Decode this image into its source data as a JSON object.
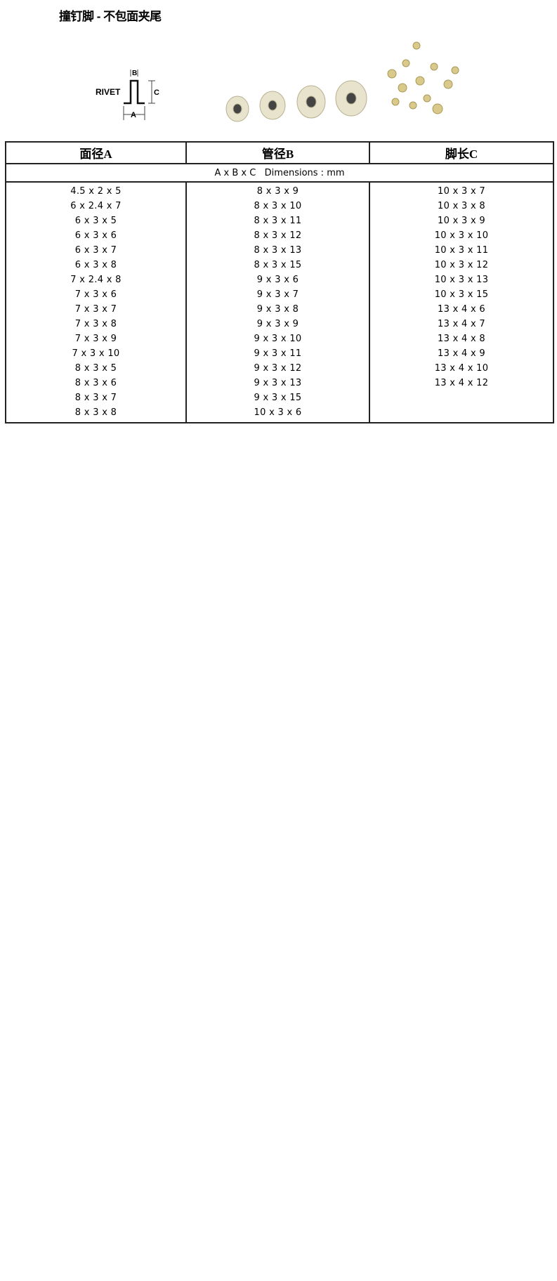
{
  "title": "撞钉脚 - 不包面夹尾",
  "diagram": {
    "label": "RIVET",
    "a": "A",
    "b": "B",
    "c": "C"
  },
  "table": {
    "headers": [
      "面径A",
      "管径B",
      "脚长C"
    ],
    "dimensions_label": "A x B x C   Dimensions : mm",
    "columns": [
      [
        "4.5 x 2 x 5",
        "6 x 2.4 x 7",
        "6 x 3 x 5",
        "6 x 3 x 6",
        "6 x 3 x 7",
        "6 x 3 x 8",
        "7 x 2.4 x 8",
        "7 x 3 x 6",
        "7 x 3 x 7",
        "7 x 3 x 8",
        "7 x 3 x 9",
        "7 x 3 x 10",
        "8 x 3 x 5",
        "8 x 3 x 6",
        "8 x 3 x 7",
        "8 x 3 x 8"
      ],
      [
        "8 x 3 x 9",
        "8 x 3 x 10",
        "8 x 3 x 11",
        "8 x 3 x 12",
        "8 x 3 x 13",
        "8 x 3 x 15",
        "9 x 3 x 6",
        "9 x 3 x 7",
        "9 x 3 x 8",
        "9 x 3 x 9",
        "9 x 3 x 10",
        "9 x 3 x 11",
        "9 x 3 x 12",
        "9 x 3 x 13",
        "9 x 3 x 15",
        "10 x 3 x 6"
      ],
      [
        "10 x 3 x 7",
        "10 x 3 x 8",
        "10 x 3 x 9",
        "10 x 3 x 10",
        "10 x 3 x 11",
        "10 x 3 x 12",
        "10 x 3 x 13",
        "10 x 3 x 15",
        "13 x 4 x 6",
        "13 x 4 x 7",
        "13 x 4 x 8",
        "13 x 4 x 9",
        "13 x 4 x 10",
        "13 x 4 x 12"
      ]
    ]
  }
}
